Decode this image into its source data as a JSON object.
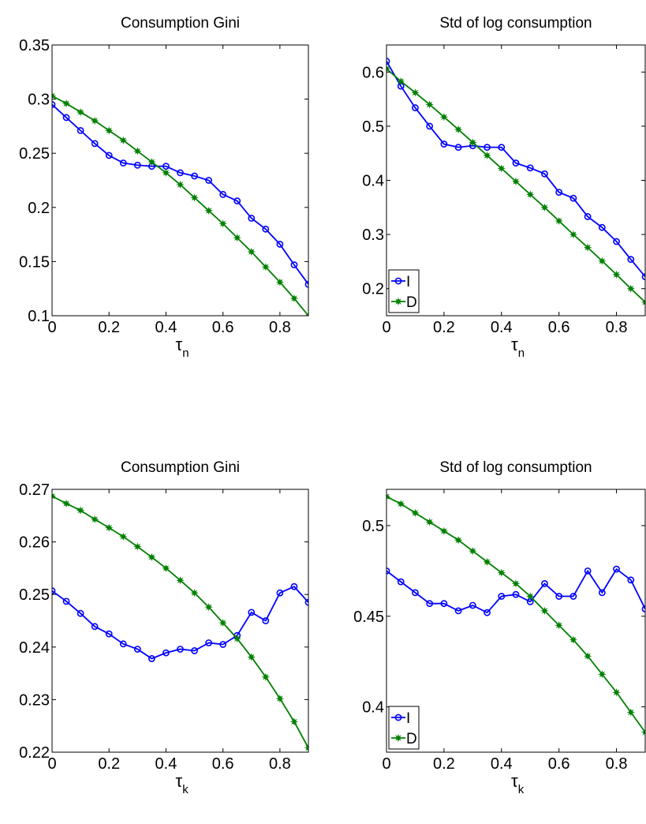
{
  "chart_data": [
    {
      "type": "line",
      "title": "Consumption Gini",
      "xlabel": "τ",
      "xlabel_sub": "n",
      "xlim": [
        0,
        0.9
      ],
      "ylim": [
        0.1,
        0.35
      ],
      "xticks": [
        0,
        0.2,
        0.4,
        0.6,
        0.8
      ],
      "xtick_labels": [
        "0",
        "0.2",
        "0.4",
        "0.6",
        "0.8"
      ],
      "yticks": [
        0.1,
        0.15,
        0.2,
        0.25,
        0.3,
        0.35
      ],
      "ytick_labels": [
        "0.1",
        "0.15",
        "0.2",
        "0.25",
        "0.3",
        "0.35"
      ],
      "grid": false,
      "x": [
        0,
        0.05,
        0.1,
        0.15,
        0.2,
        0.25,
        0.3,
        0.35,
        0.4,
        0.45,
        0.5,
        0.55,
        0.6,
        0.65,
        0.7,
        0.75,
        0.8,
        0.85,
        0.9
      ],
      "series": [
        {
          "name": "",
          "color": "#0000ff",
          "marker": "circle",
          "values": [
            0.295,
            0.283,
            0.271,
            0.259,
            0.248,
            0.241,
            0.239,
            0.238,
            0.238,
            0.232,
            0.229,
            0.225,
            0.212,
            0.206,
            0.19,
            0.18,
            0.166,
            0.147,
            0.129
          ]
        },
        {
          "name": "",
          "color": "#008000",
          "marker": "star",
          "values": [
            0.303,
            0.296,
            0.288,
            0.28,
            0.271,
            0.262,
            0.252,
            0.242,
            0.232,
            0.221,
            0.209,
            0.197,
            0.185,
            0.172,
            0.159,
            0.145,
            0.131,
            0.116,
            0.1
          ]
        }
      ]
    },
    {
      "type": "line",
      "title": "Std of log consumption",
      "xlabel": "τ",
      "xlabel_sub": "n",
      "xlim": [
        0,
        0.9
      ],
      "ylim": [
        0.15,
        0.65
      ],
      "xticks": [
        0,
        0.2,
        0.4,
        0.6,
        0.8
      ],
      "xtick_labels": [
        "0",
        "0.2",
        "0.4",
        "0.6",
        "0.8"
      ],
      "yticks": [
        0.2,
        0.3,
        0.4,
        0.5,
        0.6
      ],
      "ytick_labels": [
        "0.2",
        "0.3",
        "0.4",
        "0.5",
        "0.6"
      ],
      "grid": false,
      "legend": "bottom-left",
      "x": [
        0,
        0.05,
        0.1,
        0.15,
        0.2,
        0.25,
        0.3,
        0.35,
        0.4,
        0.45,
        0.5,
        0.55,
        0.6,
        0.65,
        0.7,
        0.75,
        0.8,
        0.85,
        0.9
      ],
      "series": [
        {
          "name": "I",
          "color": "#0000ff",
          "marker": "circle",
          "values": [
            0.62,
            0.574,
            0.534,
            0.5,
            0.467,
            0.461,
            0.464,
            0.461,
            0.461,
            0.432,
            0.423,
            0.412,
            0.378,
            0.367,
            0.333,
            0.313,
            0.287,
            0.254,
            0.222
          ]
        },
        {
          "name": "D",
          "color": "#008000",
          "marker": "star",
          "values": [
            0.606,
            0.583,
            0.562,
            0.54,
            0.517,
            0.494,
            0.47,
            0.446,
            0.422,
            0.398,
            0.374,
            0.35,
            0.325,
            0.3,
            0.276,
            0.251,
            0.226,
            0.2,
            0.175
          ]
        }
      ]
    },
    {
      "type": "line",
      "title": "Consumption Gini",
      "xlabel": "τ",
      "xlabel_sub": "k",
      "xlim": [
        0,
        0.9
      ],
      "ylim": [
        0.22,
        0.27
      ],
      "xticks": [
        0,
        0.2,
        0.4,
        0.6,
        0.8
      ],
      "xtick_labels": [
        "0",
        "0.2",
        "0.4",
        "0.6",
        "0.8"
      ],
      "yticks": [
        0.22,
        0.23,
        0.24,
        0.25,
        0.26,
        0.27
      ],
      "ytick_labels": [
        "0.22",
        "0.23",
        "0.24",
        "0.25",
        "0.26",
        "0.27"
      ],
      "grid": false,
      "x": [
        0,
        0.05,
        0.1,
        0.15,
        0.2,
        0.25,
        0.3,
        0.35,
        0.4,
        0.45,
        0.5,
        0.55,
        0.6,
        0.65,
        0.7,
        0.75,
        0.8,
        0.85,
        0.9
      ],
      "series": [
        {
          "name": "",
          "color": "#0000ff",
          "marker": "circle",
          "values": [
            0.2507,
            0.2487,
            0.2464,
            0.2439,
            0.2425,
            0.2406,
            0.2396,
            0.2378,
            0.2389,
            0.2396,
            0.2393,
            0.2408,
            0.2405,
            0.2422,
            0.2466,
            0.245,
            0.2503,
            0.2515,
            0.2485
          ]
        },
        {
          "name": "",
          "color": "#008000",
          "marker": "star",
          "values": [
            0.2687,
            0.2673,
            0.266,
            0.2643,
            0.2627,
            0.261,
            0.2591,
            0.2571,
            0.255,
            0.2527,
            0.2503,
            0.2476,
            0.2446,
            0.2416,
            0.2381,
            0.2343,
            0.2302,
            0.2258,
            0.2208
          ]
        }
      ]
    },
    {
      "type": "line",
      "title": "Std of log consumption",
      "xlabel": "τ",
      "xlabel_sub": "k",
      "xlim": [
        0,
        0.9
      ],
      "ylim": [
        0.375,
        0.52
      ],
      "xticks": [
        0,
        0.2,
        0.4,
        0.6,
        0.8
      ],
      "xtick_labels": [
        "0",
        "0.2",
        "0.4",
        "0.6",
        "0.8"
      ],
      "yticks": [
        0.4,
        0.45,
        0.5
      ],
      "ytick_labels": [
        "0.4",
        "0.45",
        "0.5"
      ],
      "grid": false,
      "legend": "bottom-left",
      "x": [
        0,
        0.05,
        0.1,
        0.15,
        0.2,
        0.25,
        0.3,
        0.35,
        0.4,
        0.45,
        0.5,
        0.55,
        0.6,
        0.65,
        0.7,
        0.75,
        0.8,
        0.85,
        0.9
      ],
      "series": [
        {
          "name": "I",
          "color": "#0000ff",
          "marker": "circle",
          "values": [
            0.475,
            0.469,
            0.463,
            0.457,
            0.457,
            0.453,
            0.456,
            0.452,
            0.461,
            0.462,
            0.458,
            0.468,
            0.461,
            0.461,
            0.475,
            0.463,
            0.476,
            0.47,
            0.454
          ]
        },
        {
          "name": "D",
          "color": "#008000",
          "marker": "star",
          "values": [
            0.516,
            0.512,
            0.507,
            0.502,
            0.497,
            0.492,
            0.486,
            0.48,
            0.474,
            0.468,
            0.461,
            0.453,
            0.445,
            0.437,
            0.428,
            0.418,
            0.408,
            0.397,
            0.386
          ]
        }
      ]
    }
  ]
}
